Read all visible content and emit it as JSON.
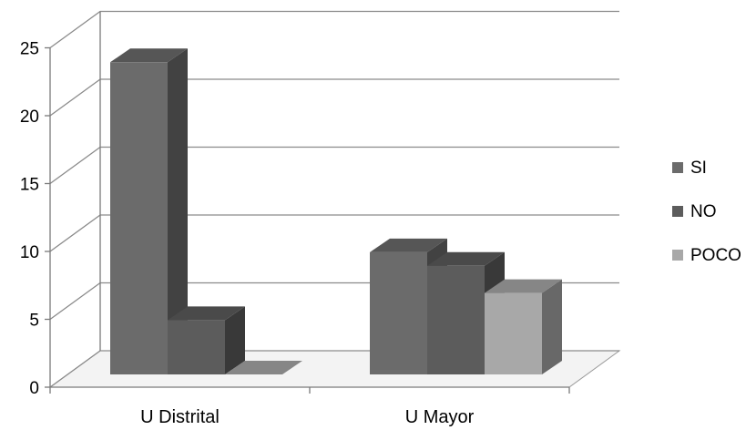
{
  "chart_data": {
    "type": "bar",
    "title": "",
    "xlabel": "",
    "ylabel": "",
    "categories": [
      "U Distrital",
      "U Mayor"
    ],
    "series": [
      {
        "name": "SI",
        "values": [
          23,
          9
        ],
        "color": "#6b6b6b"
      },
      {
        "name": "NO",
        "values": [
          4,
          8
        ],
        "color": "#5c5c5c"
      },
      {
        "name": "POCO",
        "values": [
          0,
          6
        ],
        "color": "#a8a8a8"
      }
    ],
    "ylim": [
      0,
      25
    ],
    "yticks": [
      0,
      5,
      10,
      15,
      20,
      25
    ],
    "grid": true,
    "legend_position": "right"
  }
}
